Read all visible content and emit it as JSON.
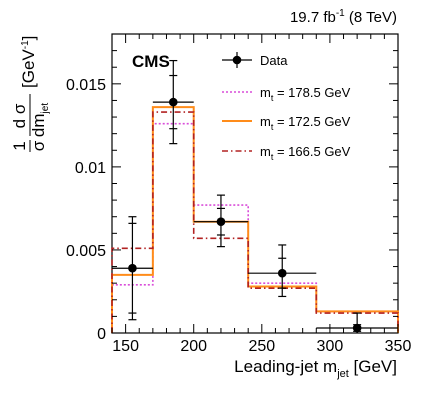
{
  "chart_data": {
    "type": "line",
    "title": "",
    "lumi_label": {
      "main": "19.7 fb",
      "sup": "-1",
      "tail": " (8 TeV)"
    },
    "experiment_label": "CMS",
    "xlabel": {
      "main": "Leading-jet m",
      "sub": "jet",
      "unit": " [GeV]"
    },
    "ylabel": {
      "frac_num": "1",
      "frac_den": "σ",
      "dnum": "d σ",
      "dden": "dm",
      "dden_sub": "jet",
      "unit": "[GeV",
      "unit_sup": "-1",
      "unit_close": "]"
    },
    "xlim": [
      140,
      350
    ],
    "ylim": [
      0,
      0.018
    ],
    "xticks": [
      150,
      200,
      250,
      300,
      350
    ],
    "xtick_labels": [
      "150",
      "200",
      "250",
      "300",
      "350"
    ],
    "yticks": [
      0,
      0.005,
      0.01,
      0.015
    ],
    "ytick_labels": [
      "0",
      "0.005",
      "0.01",
      "0.015"
    ],
    "bin_edges": [
      140,
      170,
      200,
      240,
      290,
      350
    ],
    "data": {
      "name": "Data",
      "x": [
        155,
        185,
        220,
        265,
        320
      ],
      "y": [
        0.0039,
        0.0139,
        0.0067,
        0.0036,
        0.0003
      ],
      "xerr": [
        15,
        15,
        20,
        25,
        30
      ],
      "yerr_up": [
        0.0031,
        0.0025,
        0.0016,
        0.0017,
        0.0009
      ],
      "yerr_down": [
        0.0031,
        0.0025,
        0.0015,
        0.0014,
        0.0003
      ],
      "inner_err": [
        0.0027,
        0.0016,
        0.0008,
        0.0009,
        0.0002
      ]
    },
    "series": [
      {
        "name_main": "m",
        "name_sub": "t",
        "name_tail": " = 178.5 GeV",
        "color": "#d94dd9",
        "dash": "2,2",
        "values": [
          0.0029,
          0.0126,
          0.0077,
          0.003,
          0.0013
        ]
      },
      {
        "name_main": "m",
        "name_sub": "t",
        "name_tail": " = 172.5 GeV",
        "color": "#ff8c1a",
        "dash": "",
        "values": [
          0.0035,
          0.0136,
          0.0067,
          0.0028,
          0.0013
        ]
      },
      {
        "name_main": "m",
        "name_sub": "t",
        "name_tail": " = 166.5 GeV",
        "color": "#b22222",
        "dash": "6,3,1.5,3",
        "values": [
          0.0051,
          0.0133,
          0.0057,
          0.0027,
          0.0012
        ]
      }
    ],
    "legend_position": "top-right",
    "grid": false
  }
}
